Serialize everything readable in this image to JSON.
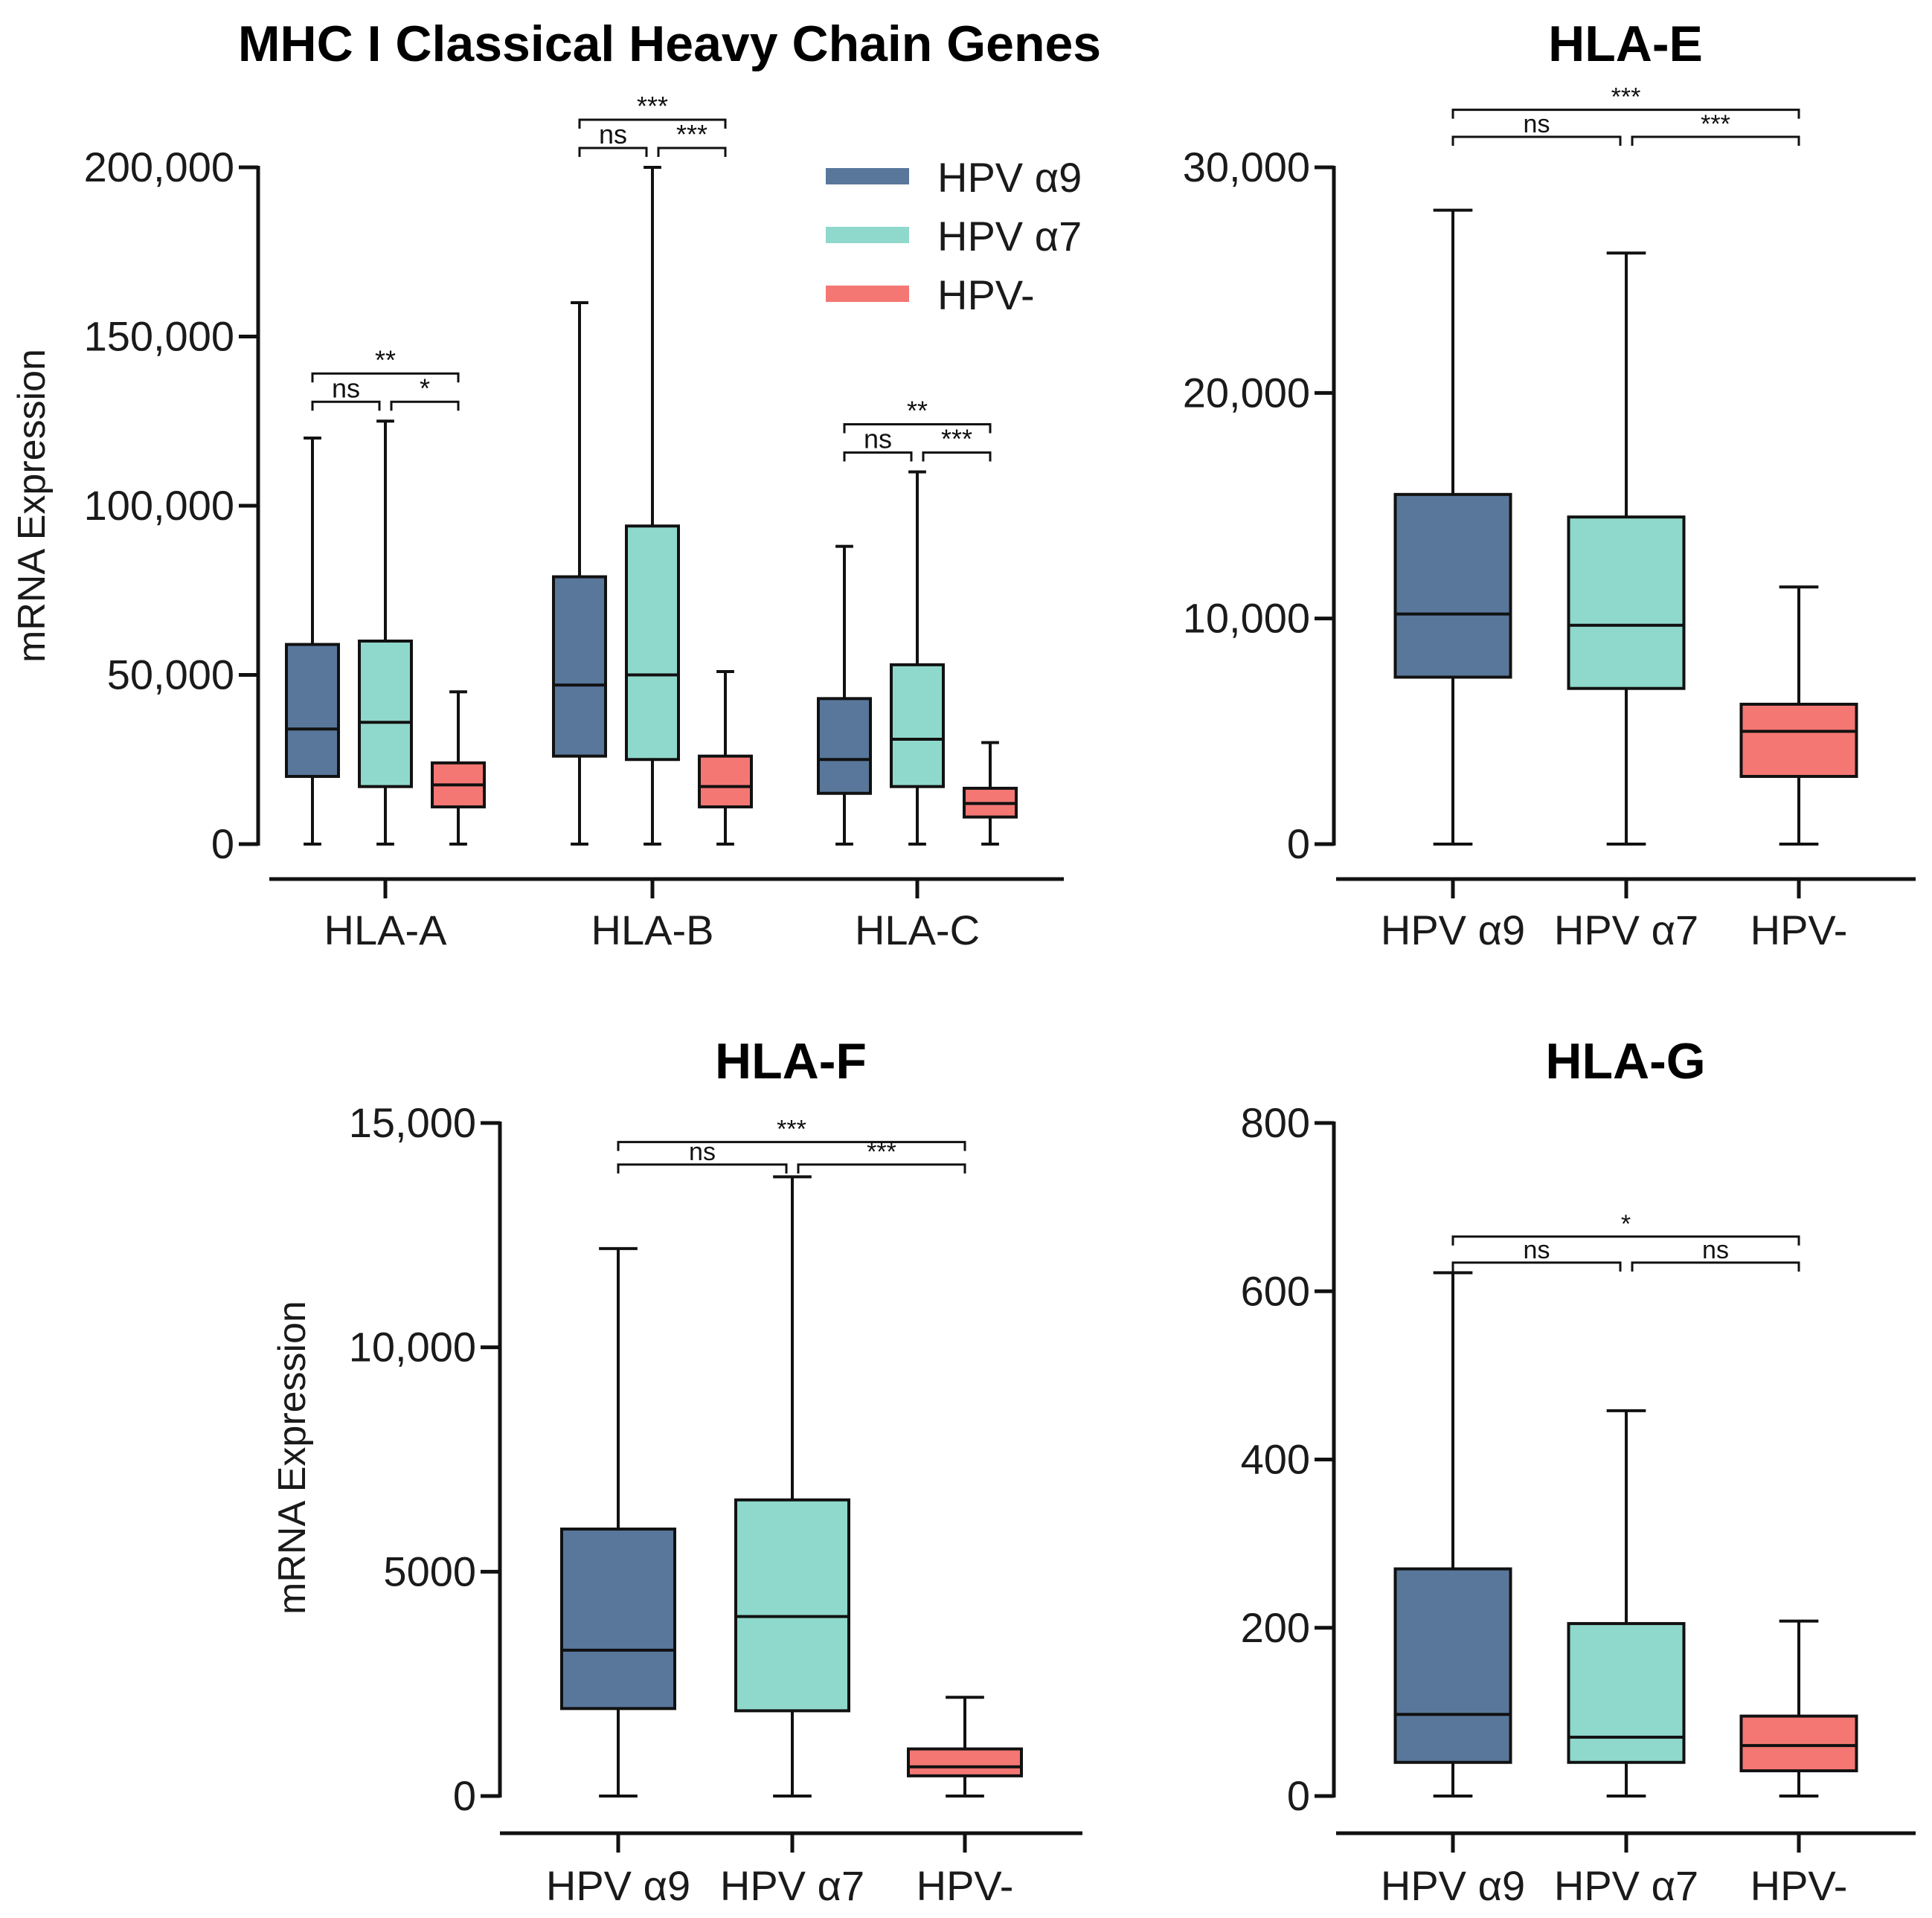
{
  "legend": {
    "entries": [
      "HPV α9",
      "HPV α7",
      "HPV-"
    ],
    "colors": [
      "#58779b",
      "#8fd8cc",
      "#f47773"
    ]
  },
  "chart_data": [
    {
      "type": "box",
      "title": "MHC I Classical Heavy Chain Genes",
      "ylabel": "mRNA Expression",
      "ylim": [
        0,
        200000
      ],
      "yticks": [
        0,
        50000,
        100000,
        150000,
        200000
      ],
      "ytick_labels": [
        "0",
        "50,000",
        "100,000",
        "150,000",
        "200,000"
      ],
      "categories": [
        "HLA-A",
        "HLA-B",
        "HLA-C"
      ],
      "series": [
        {
          "name": "HPV α9",
          "boxes": [
            {
              "min": 0,
              "q1": 20000,
              "median": 34000,
              "q3": 59000,
              "max": 120000
            },
            {
              "min": 0,
              "q1": 26000,
              "median": 47000,
              "q3": 79000,
              "max": 160000
            },
            {
              "min": 0,
              "q1": 15000,
              "median": 25000,
              "q3": 43000,
              "max": 88000
            }
          ]
        },
        {
          "name": "HPV α7",
          "boxes": [
            {
              "min": 0,
              "q1": 17000,
              "median": 36000,
              "q3": 60000,
              "max": 125000
            },
            {
              "min": 0,
              "q1": 25000,
              "median": 50000,
              "q3": 94000,
              "max": 200000
            },
            {
              "min": 0,
              "q1": 17000,
              "median": 31000,
              "q3": 53000,
              "max": 110000
            }
          ]
        },
        {
          "name": "HPV-",
          "boxes": [
            {
              "min": 0,
              "q1": 11000,
              "median": 17500,
              "q3": 24000,
              "max": 45000
            },
            {
              "min": 0,
              "q1": 11000,
              "median": 17000,
              "q3": 26000,
              "max": 51000
            },
            {
              "min": 0,
              "q1": 8000,
              "median": 12000,
              "q3": 16500,
              "max": 30000
            }
          ]
        }
      ],
      "significance": [
        {
          "category": "HLA-A",
          "brackets": [
            {
              "from": 0,
              "to": 1,
              "label": "ns"
            },
            {
              "from": 1,
              "to": 2,
              "label": "*"
            },
            {
              "from": 0,
              "to": 2,
              "label": "**"
            }
          ]
        },
        {
          "category": "HLA-B",
          "brackets": [
            {
              "from": 0,
              "to": 1,
              "label": "ns"
            },
            {
              "from": 1,
              "to": 2,
              "label": "***"
            },
            {
              "from": 0,
              "to": 2,
              "label": "***"
            }
          ]
        },
        {
          "category": "HLA-C",
          "brackets": [
            {
              "from": 0,
              "to": 1,
              "label": "ns"
            },
            {
              "from": 1,
              "to": 2,
              "label": "***"
            },
            {
              "from": 0,
              "to": 2,
              "label": "**"
            }
          ]
        }
      ]
    },
    {
      "type": "box",
      "title": "HLA-E",
      "ylabel": "",
      "ylim": [
        0,
        30000
      ],
      "yticks": [
        0,
        10000,
        20000,
        30000
      ],
      "ytick_labels": [
        "0",
        "10,000",
        "20,000",
        "30,000"
      ],
      "categories": [
        "HPV α9",
        "HPV α7",
        "HPV-"
      ],
      "boxes": [
        {
          "min": 0,
          "q1": 7400,
          "median": 10200,
          "q3": 15500,
          "max": 28100
        },
        {
          "min": 0,
          "q1": 6900,
          "median": 9700,
          "q3": 14500,
          "max": 26200
        },
        {
          "min": 0,
          "q1": 3000,
          "median": 5000,
          "q3": 6200,
          "max": 11400
        }
      ],
      "brackets": [
        {
          "from": 0,
          "to": 1,
          "label": "ns"
        },
        {
          "from": 1,
          "to": 2,
          "label": "***"
        },
        {
          "from": 0,
          "to": 2,
          "label": "***"
        }
      ]
    },
    {
      "type": "box",
      "title": "HLA-F",
      "ylabel": "mRNA Expression",
      "ylim": [
        0,
        15000
      ],
      "yticks": [
        0,
        5000,
        10000,
        15000
      ],
      "ytick_labels": [
        "0",
        "5000",
        "10,000",
        "15,000"
      ],
      "categories": [
        "HPV α9",
        "HPV α7",
        "HPV-"
      ],
      "boxes": [
        {
          "min": 0,
          "q1": 1950,
          "median": 3250,
          "q3": 5950,
          "max": 12200
        },
        {
          "min": 0,
          "q1": 1900,
          "median": 4000,
          "q3": 6600,
          "max": 13800
        },
        {
          "min": 0,
          "q1": 450,
          "median": 650,
          "q3": 1050,
          "max": 2200
        }
      ],
      "brackets": [
        {
          "from": 0,
          "to": 1,
          "label": "ns"
        },
        {
          "from": 1,
          "to": 2,
          "label": "***"
        },
        {
          "from": 0,
          "to": 2,
          "label": "***"
        }
      ]
    },
    {
      "type": "box",
      "title": "HLA-G",
      "ylabel": "",
      "ylim": [
        0,
        800
      ],
      "yticks": [
        0,
        200,
        400,
        600,
        800
      ],
      "ytick_labels": [
        "0",
        "200",
        "400",
        "600",
        "800"
      ],
      "categories": [
        "HPV α9",
        "HPV α7",
        "HPV-"
      ],
      "boxes": [
        {
          "min": 0,
          "q1": 40,
          "median": 97,
          "q3": 270,
          "max": 622
        },
        {
          "min": 0,
          "q1": 40,
          "median": 70,
          "q3": 205,
          "max": 458
        },
        {
          "min": 0,
          "q1": 30,
          "median": 60,
          "q3": 95,
          "max": 208
        }
      ],
      "brackets": [
        {
          "from": 0,
          "to": 1,
          "label": "ns"
        },
        {
          "from": 1,
          "to": 2,
          "label": "ns"
        },
        {
          "from": 0,
          "to": 2,
          "label": "*"
        }
      ]
    }
  ]
}
